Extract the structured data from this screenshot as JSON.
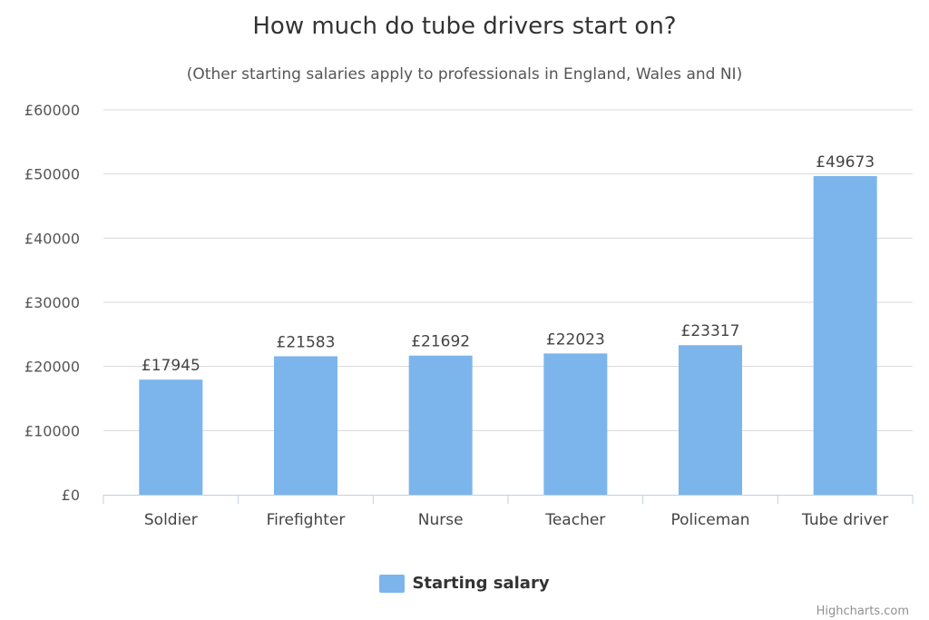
{
  "chart_data": {
    "type": "bar",
    "title": "How much do tube drivers start on?",
    "subtitle": "(Other starting salaries apply to professionals in England, Wales and NI)",
    "categories": [
      "Soldier",
      "Firefighter",
      "Nurse",
      "Teacher",
      "Policeman",
      "Tube driver"
    ],
    "series": [
      {
        "name": "Starting salary",
        "values": [
          17945,
          21583,
          21692,
          22023,
          23317,
          49673
        ]
      }
    ],
    "data_labels": [
      "£17945",
      "£21583",
      "£21692",
      "£22023",
      "£23317",
      "£49673"
    ],
    "y_ticks": [
      "£0",
      "£10000",
      "£20000",
      "£30000",
      "£40000",
      "£50000",
      "£60000"
    ],
    "y_tick_values": [
      0,
      10000,
      20000,
      30000,
      40000,
      50000,
      60000
    ],
    "ylim": [
      0,
      60000
    ],
    "xlabel": "",
    "ylabel": "",
    "grid": true,
    "legend_position": "bottom-center",
    "bar_color": "#7cb5ec"
  },
  "credits": "Highcharts.com"
}
